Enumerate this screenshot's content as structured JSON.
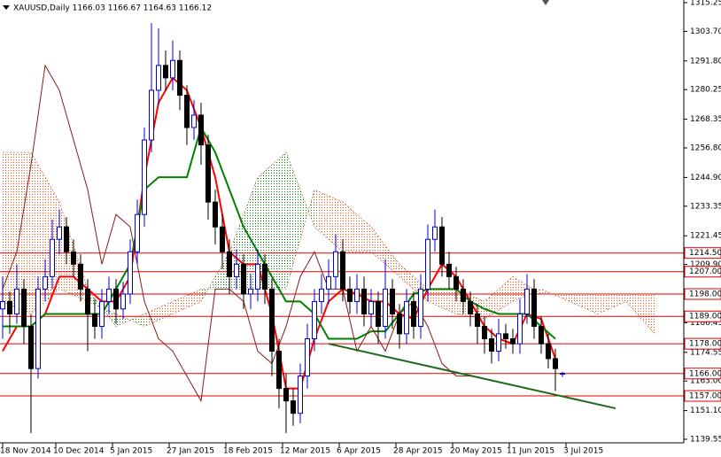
{
  "chart_data": {
    "type": "candlestick",
    "title": "XAUUSD,Daily  1166.03 1166.67 1164.63 1166.12",
    "up_color": "#0000cd",
    "down_color": "#000000",
    "x": [
      0,
      2,
      4,
      6,
      8,
      10,
      12,
      14,
      16,
      18,
      20,
      22,
      24,
      26,
      28,
      30,
      32,
      34,
      36,
      38,
      40,
      42,
      44,
      46,
      48,
      50,
      52,
      54,
      56,
      58,
      60,
      62,
      64,
      66,
      68,
      70,
      72,
      74,
      76,
      78,
      80,
      82,
      84,
      86,
      88,
      90,
      92,
      94,
      96,
      98,
      100,
      102,
      104,
      106,
      108,
      110,
      112,
      114,
      116,
      118,
      120,
      122,
      124,
      126,
      128,
      130,
      132,
      134,
      136,
      138,
      140,
      142,
      144,
      146,
      148,
      150,
      152,
      154,
      156,
      158
    ],
    "ohlc": [
      [
        1192,
        1205,
        1180,
        1195
      ],
      [
        1195,
        1199,
        1182,
        1190
      ],
      [
        1190,
        1210,
        1186,
        1200
      ],
      [
        1200,
        1204,
        1178,
        1185
      ],
      [
        1185,
        1190,
        1142,
        1168
      ],
      [
        1168,
        1205,
        1164,
        1200
      ],
      [
        1200,
        1212,
        1195,
        1205
      ],
      [
        1205,
        1228,
        1200,
        1220
      ],
      [
        1220,
        1232,
        1214,
        1225
      ],
      [
        1225,
        1229,
        1210,
        1215
      ],
      [
        1215,
        1220,
        1205,
        1210
      ],
      [
        1210,
        1214,
        1195,
        1200
      ],
      [
        1200,
        1204,
        1175,
        1190
      ],
      [
        1190,
        1196,
        1180,
        1185
      ],
      [
        1185,
        1200,
        1180,
        1195
      ],
      [
        1195,
        1205,
        1190,
        1200
      ],
      [
        1200,
        1204,
        1186,
        1192
      ],
      [
        1192,
        1203,
        1188,
        1198
      ],
      [
        1198,
        1220,
        1194,
        1215
      ],
      [
        1215,
        1236,
        1210,
        1230
      ],
      [
        1230,
        1265,
        1225,
        1260
      ],
      [
        1260,
        1307,
        1255,
        1280
      ],
      [
        1280,
        1305,
        1274,
        1290
      ],
      [
        1290,
        1296,
        1280,
        1285
      ],
      [
        1285,
        1300,
        1280,
        1292
      ],
      [
        1292,
        1296,
        1272,
        1278
      ],
      [
        1278,
        1282,
        1258,
        1265
      ],
      [
        1265,
        1276,
        1260,
        1270
      ],
      [
        1270,
        1275,
        1250,
        1258
      ],
      [
        1258,
        1262,
        1228,
        1235
      ],
      [
        1235,
        1240,
        1218,
        1225
      ],
      [
        1225,
        1230,
        1208,
        1215
      ],
      [
        1215,
        1220,
        1198,
        1205
      ],
      [
        1205,
        1216,
        1200,
        1210
      ],
      [
        1210,
        1214,
        1192,
        1198
      ],
      [
        1198,
        1206,
        1192,
        1200
      ],
      [
        1200,
        1216,
        1195,
        1210
      ],
      [
        1210,
        1214,
        1194,
        1200
      ],
      [
        1200,
        1204,
        1165,
        1175
      ],
      [
        1175,
        1180,
        1152,
        1160
      ],
      [
        1160,
        1166,
        1142,
        1155
      ],
      [
        1155,
        1160,
        1145,
        1150
      ],
      [
        1150,
        1170,
        1146,
        1165
      ],
      [
        1165,
        1186,
        1160,
        1180
      ],
      [
        1180,
        1200,
        1175,
        1195
      ],
      [
        1195,
        1206,
        1190,
        1200
      ],
      [
        1200,
        1212,
        1194,
        1205
      ],
      [
        1205,
        1222,
        1200,
        1215
      ],
      [
        1215,
        1220,
        1195,
        1200
      ],
      [
        1200,
        1205,
        1190,
        1195
      ],
      [
        1195,
        1206,
        1190,
        1200
      ],
      [
        1200,
        1205,
        1185,
        1190
      ],
      [
        1190,
        1200,
        1185,
        1195
      ],
      [
        1195,
        1199,
        1178,
        1185
      ],
      [
        1185,
        1212,
        1180,
        1200
      ],
      [
        1200,
        1204,
        1184,
        1190
      ],
      [
        1190,
        1194,
        1176,
        1182
      ],
      [
        1182,
        1200,
        1178,
        1195
      ],
      [
        1195,
        1199,
        1180,
        1185
      ],
      [
        1185,
        1206,
        1180,
        1200
      ],
      [
        1200,
        1226,
        1195,
        1220
      ],
      [
        1220,
        1232,
        1215,
        1225
      ],
      [
        1225,
        1229,
        1205,
        1210
      ],
      [
        1210,
        1215,
        1200,
        1205
      ],
      [
        1205,
        1209,
        1195,
        1200
      ],
      [
        1200,
        1204,
        1190,
        1195
      ],
      [
        1195,
        1199,
        1185,
        1190
      ],
      [
        1190,
        1194,
        1178,
        1185
      ],
      [
        1185,
        1189,
        1174,
        1180
      ],
      [
        1180,
        1184,
        1170,
        1175
      ],
      [
        1175,
        1188,
        1171,
        1182
      ],
      [
        1182,
        1186,
        1176,
        1180
      ],
      [
        1180,
        1184,
        1174,
        1178
      ],
      [
        1178,
        1196,
        1174,
        1190
      ],
      [
        1190,
        1206,
        1186,
        1200
      ],
      [
        1200,
        1204,
        1180,
        1185
      ],
      [
        1185,
        1189,
        1174,
        1178
      ],
      [
        1178,
        1182,
        1168,
        1172
      ],
      [
        1172,
        1176,
        1159,
        1168
      ],
      [
        1166.03,
        1166.67,
        1164.63,
        1166.12
      ]
    ],
    "series": [
      {
        "color": "#ff0000",
        "width": 2,
        "x": [
          0,
          4,
          8,
          12,
          16,
          20,
          24,
          28,
          32,
          36,
          40,
          44,
          48,
          52,
          56,
          60,
          64,
          68,
          72,
          76,
          80,
          84,
          88,
          92,
          96,
          100,
          104,
          108,
          112,
          116,
          120,
          124,
          128,
          132,
          136,
          140,
          144,
          148,
          152,
          156
        ],
        "values": [
          1175,
          1185,
          1185,
          1190,
          1205,
          1205,
          1200,
          1195,
          1195,
          1205,
          1245,
          1275,
          1285,
          1280,
          1265,
          1245,
          1215,
          1210,
          1210,
          1190,
          1160,
          1160,
          1180,
          1195,
          1200,
          1198,
          1195,
          1195,
          1190,
          1188,
          1200,
          1210,
          1205,
          1195,
          1185,
          1180,
          1178,
          1190,
          1188,
          1172
        ]
      },
      {
        "color": "#008000",
        "width": 2,
        "x": [
          0,
          4,
          8,
          12,
          16,
          20,
          24,
          28,
          32,
          36,
          40,
          44,
          48,
          52,
          56,
          60,
          64,
          68,
          72,
          76,
          80,
          84,
          88,
          92,
          96,
          100,
          104,
          108,
          112,
          116,
          120,
          124,
          128,
          132,
          136,
          140,
          144,
          148,
          152,
          156
        ],
        "values": [
          1185,
          1185,
          1185,
          1190,
          1190,
          1190,
          1190,
          1190,
          1200,
          1210,
          1240,
          1245,
          1245,
          1245,
          1265,
          1255,
          1240,
          1225,
          1215,
          1205,
          1195,
          1195,
          1190,
          1180,
          1180,
          1180,
          1183,
          1183,
          1190,
          1198,
          1200,
          1200,
          1200,
          1195,
          1192,
          1190,
          1190,
          1190,
          1185,
          1180
        ]
      },
      {
        "color": "#8b1a1a",
        "width": 1,
        "x": [
          0,
          4,
          8,
          12,
          16,
          20,
          24,
          28,
          32,
          36,
          40,
          44,
          48,
          52,
          56,
          60,
          64,
          68,
          72,
          76,
          80,
          84,
          88,
          92,
          96,
          100,
          104,
          108,
          112,
          116,
          120,
          124,
          128,
          132
        ],
        "values": [
          1200,
          1215,
          1250,
          1290,
          1280,
          1260,
          1240,
          1210,
          1230,
          1225,
          1195,
          1180,
          1175,
          1165,
          1155,
          1200,
          1200,
          1195,
          1175,
          1170,
          1185,
          1205,
          1215,
          1200,
          1200,
          1175,
          1185,
          1175,
          1190,
          1195,
          1185,
          1170,
          1165,
          1165
        ]
      }
    ],
    "cloud": {
      "bull_color": "#008000",
      "bear_color": "#ff4500",
      "edge_color": "#b05030",
      "x": [
        0,
        8,
        16,
        24,
        32,
        40,
        48,
        56,
        64,
        72,
        80,
        88,
        96,
        104,
        112,
        120,
        128,
        136,
        144,
        152,
        160,
        168,
        176,
        184
      ],
      "senkou_a": [
        1195,
        1190,
        1200,
        1195,
        1190,
        1185,
        1190,
        1195,
        1215,
        1245,
        1255,
        1225,
        1215,
        1215,
        1205,
        1195,
        1190,
        1188,
        1195,
        1200,
        1195,
        1190,
        1195,
        1182
      ],
      "senkou_b": [
        1255,
        1255,
        1235,
        1200,
        1185,
        1190,
        1195,
        1200,
        1200,
        1200,
        1200,
        1240,
        1235,
        1225,
        1210,
        1200,
        1200,
        1195,
        1205,
        1198,
        1198,
        1198,
        1198,
        1198
      ]
    },
    "trendline": {
      "color": "#1e6b1e",
      "x": [
        92,
        173
      ],
      "values": [
        1178,
        1152
      ]
    },
    "level_color": "#e00000",
    "levels": [
      {
        "value": 1214.5,
        "label": "1214.50"
      },
      {
        "value": 1207,
        "label": "1207.00"
      },
      {
        "value": 1198,
        "label": "1198.00"
      },
      {
        "value": 1189,
        "label": "1189.00"
      },
      {
        "value": 1178,
        "label": "1178.00"
      },
      {
        "value": 1166,
        "label": "1166.00"
      },
      {
        "value": 1157,
        "label": "1157.00"
      }
    ],
    "xlim": [
      -0.75,
      192.25
    ],
    "xticks": [
      {
        "value": 0,
        "label": "18 Nov 2014"
      },
      {
        "value": 15,
        "label": "10 Dec 2014"
      },
      {
        "value": 31,
        "label": "5 Jan 2015"
      },
      {
        "value": 47,
        "label": "27 Jan 2015"
      },
      {
        "value": 63,
        "label": "18 Feb 2015"
      },
      {
        "value": 79,
        "label": "12 Mar 2015"
      },
      {
        "value": 95,
        "label": "6 Apr 2015"
      },
      {
        "value": 111,
        "label": "28 Apr 2015"
      },
      {
        "value": 127,
        "label": "20 May 2015"
      },
      {
        "value": 143,
        "label": "11 Jun 2015"
      },
      {
        "value": 159,
        "label": "3 Jul 2015"
      }
    ],
    "ylim": [
      1139.55,
      1315.25
    ],
    "yticks": [
      1315.25,
      {
        "value": 1303.7,
        "label": "1303.70"
      },
      {
        "value": 1291.8,
        "label": "1291.80"
      },
      1280.25,
      1268.35,
      {
        "value": 1256.8,
        "label": "1256.80"
      },
      {
        "value": 1244.9,
        "label": "1244.90"
      },
      1233.35,
      1221.45,
      {
        "value": 1209.9,
        "label": "1209.90"
      },
      {
        "value": 1198,
        "label": "1198.00"
      },
      1186.45,
      1174.55,
      {
        "value": 1163,
        "label": "1163.00"
      },
      {
        "value": 1151.1,
        "label": "1151.10"
      },
      1139.55
    ]
  }
}
